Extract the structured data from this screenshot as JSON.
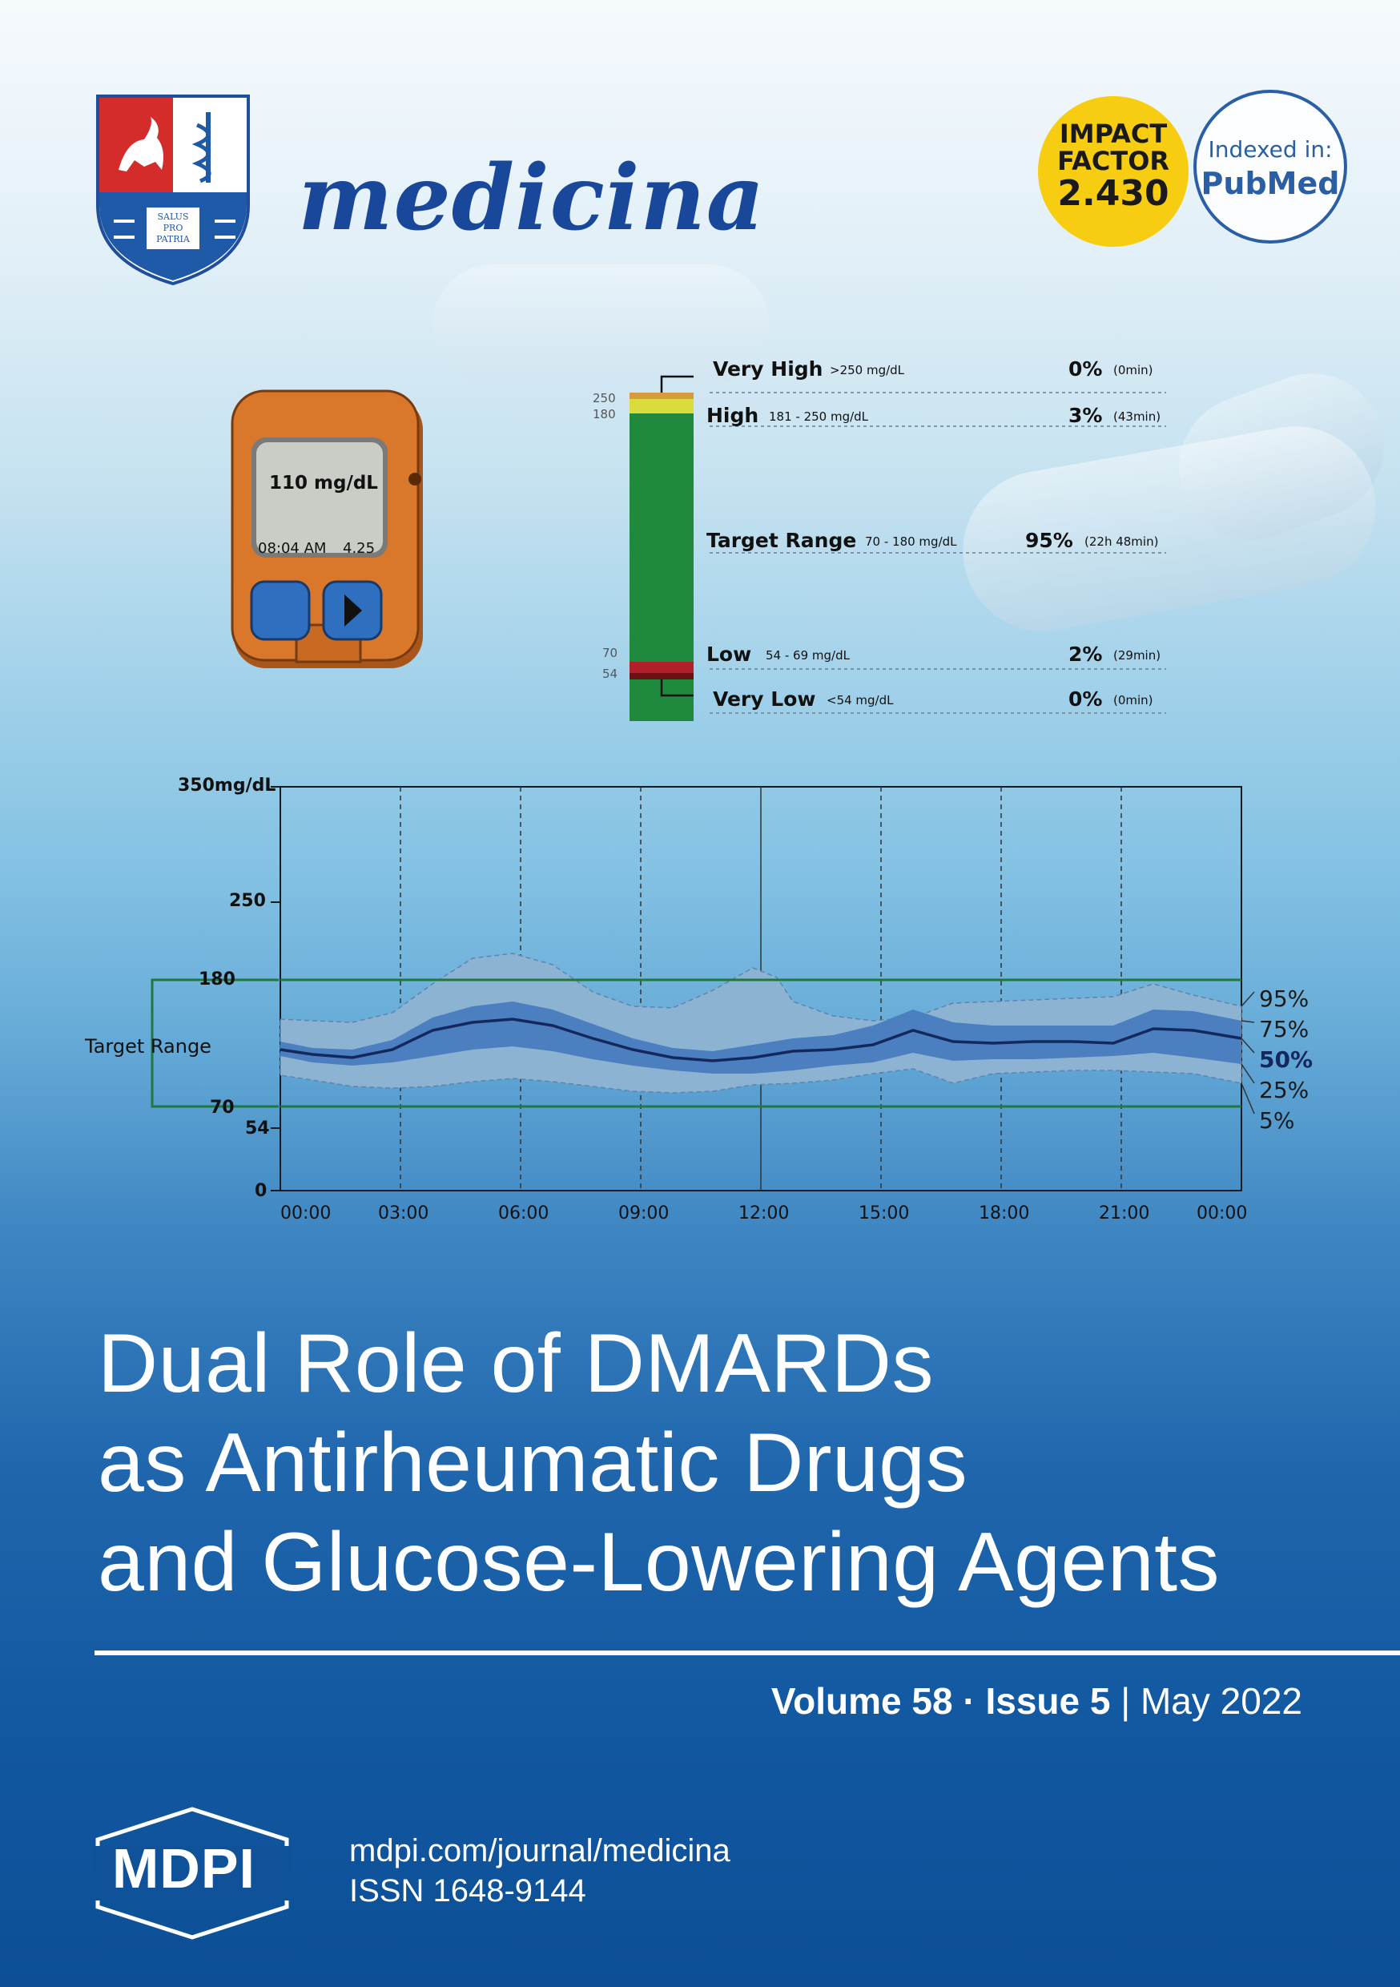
{
  "journal": {
    "name": "medicina",
    "coat_of_arms_motto": [
      "SALUS",
      "PRO",
      "PATRIA"
    ]
  },
  "impact_factor": {
    "line1": "IMPACT",
    "line2": "FACTOR",
    "value": "2.430"
  },
  "indexed": {
    "label": "Indexed in:",
    "service": "PubMed"
  },
  "meter": {
    "reading": "110 mg/dL",
    "time": "08:04 AM",
    "date": "4.25"
  },
  "time_in_range": {
    "axis_labels": [
      "250",
      "180",
      "70",
      "54"
    ],
    "rows": [
      {
        "label": "Very High",
        "range": ">250 mg/dL",
        "pct": "0%",
        "dur": "(0min)",
        "color": "#d89a3c"
      },
      {
        "label": "High",
        "range": "181 - 250 mg/dL",
        "pct": "3%",
        "dur": "(43min)",
        "color": "#d9dc3b"
      },
      {
        "label": "Target Range",
        "range": "70 - 180 mg/dL",
        "pct": "95%",
        "dur": "(22h 48min)",
        "color": "#1f8a3e"
      },
      {
        "label": "Low",
        "range": "54 - 69 mg/dL",
        "pct": "2%",
        "dur": "(29min)",
        "color": "#b0202a"
      },
      {
        "label": "Very Low",
        "range": "<54 mg/dL",
        "pct": "0%",
        "dur": "(0min)",
        "color": "#6d1015"
      }
    ]
  },
  "agp": {
    "y_top_label": "350mg/dL",
    "y_ticks": [
      "250",
      "180",
      "70",
      "54",
      "0"
    ],
    "target_label": "Target Range",
    "x_ticks": [
      "00:00",
      "03:00",
      "06:00",
      "09:00",
      "12:00",
      "15:00",
      "18:00",
      "21:00",
      "00:00"
    ],
    "percentiles": [
      "95%",
      "75%",
      "50%",
      "25%",
      "5%"
    ],
    "colors": {
      "outer": "#8db3d3",
      "inner": "#4b7fbf",
      "median": "#14285e",
      "target": "#1f7a3a"
    }
  },
  "title_lines": [
    "Dual Role of DMARDs",
    "as Antirheumatic Drugs",
    "and Glucose-Lowering Agents"
  ],
  "issue": {
    "volume": "Volume 58",
    "sep": " · ",
    "issue": "Issue 5",
    "bar": " | ",
    "date": "May 2022"
  },
  "footer": {
    "publisher": "MDPI",
    "url": "mdpi.com/journal/medicina",
    "issn": "ISSN 1648-9144"
  }
}
